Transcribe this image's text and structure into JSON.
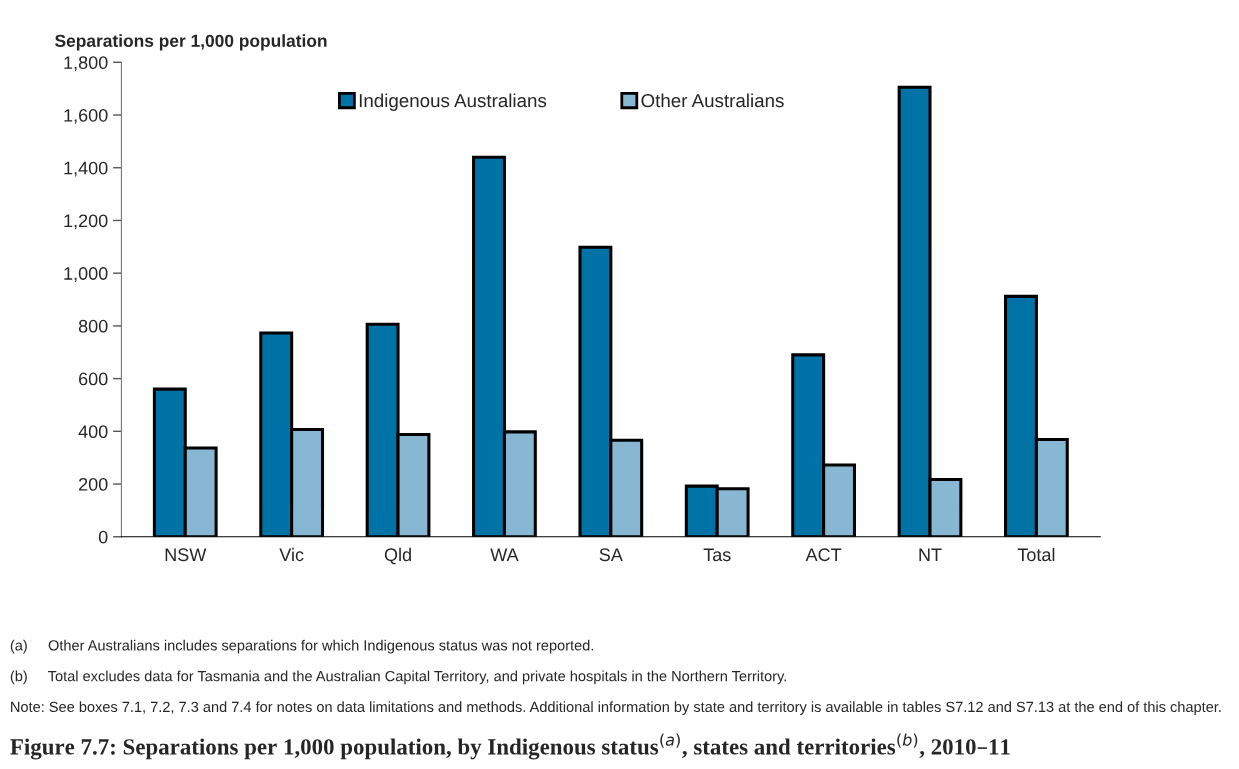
{
  "chart_data": {
    "type": "bar",
    "title": "Figure 7.7: Separations per 1,000 population, by Indigenous status$^{(a)}$, states and territories$^{(b)}$, 2010–11",
    "ylabel": "Separations per 1,000 population",
    "categories": [
      "NSW",
      "Vic",
      "Qld",
      "WA",
      "SA",
      "Tas",
      "ACT",
      "NT",
      "Total"
    ],
    "series": [
      {
        "name": "Indigenous Australians",
        "color": "#0073a6",
        "values": [
          560,
          773,
          806,
          1440,
          1098,
          192,
          690,
          1705,
          912
        ]
      },
      {
        "name": "Other Australians",
        "color": "#88b7d3",
        "values": [
          337,
          407,
          388,
          398,
          366,
          182,
          272,
          217,
          369
        ]
      }
    ],
    "ylim": [
      0,
      1800
    ],
    "yticks": [
      0,
      {
        "value": 200,
        "label": "200"
      },
      {
        "value": 400,
        "label": "400"
      },
      {
        "value": 600,
        "label": "600"
      },
      {
        "value": 800,
        "label": "800"
      },
      {
        "value": 1000,
        "label": "1,000"
      },
      {
        "value": 1200,
        "label": "1,200"
      },
      {
        "value": 1400,
        "label": "1,400"
      },
      {
        "value": 1600,
        "label": "1,600"
      },
      {
        "value": 1800,
        "label": "1,800"
      }
    ],
    "legend": "top",
    "grid": false,
    "annotations": [
      "(a)     Other Australians includes separations for which Indigenous status was not reported.",
      "(b)     Total excludes data for Tasmania and the Australian Capital Territory, and private hospitals in the Northern Territory.",
      "Note: See boxes 7.1, 7.2, 7.3 and 7.4 for notes on data limitations and methods. Additional information by state and territory is available in tables S7.12 and S7.13 at the end of this chapter."
    ]
  }
}
